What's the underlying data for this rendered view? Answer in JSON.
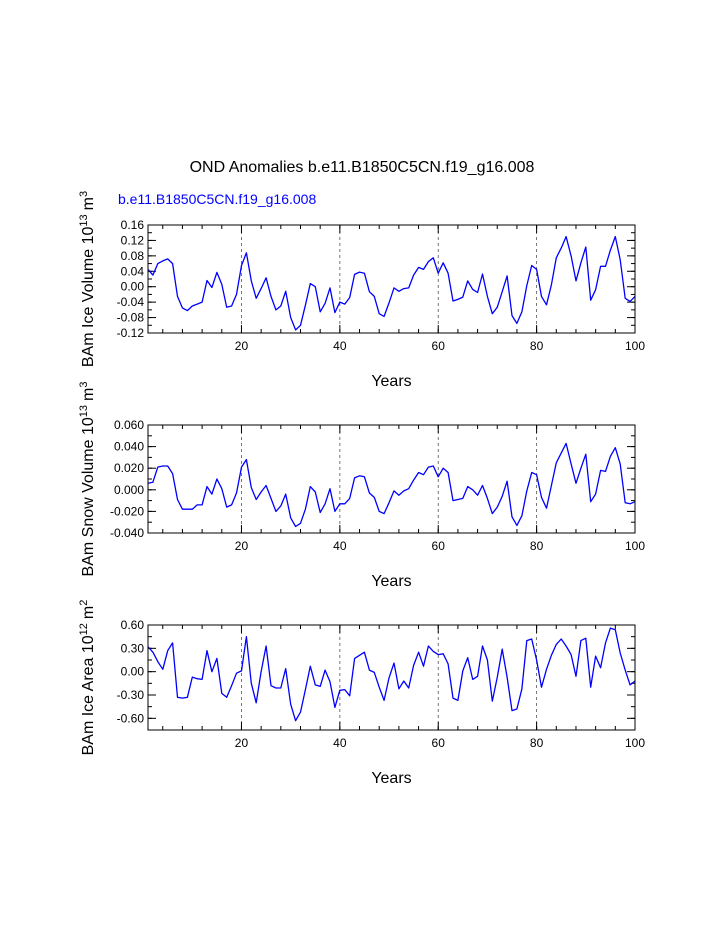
{
  "figure": {
    "title": "OND Anomalies b.e11.B1850C5CN.f19_g16.008",
    "subtitle": "b.e11.B1850C5CN.f19_g16.008",
    "subtitle_color": "#0000ff",
    "line_color": "#0000ff"
  },
  "chart_data": [
    {
      "type": "line",
      "title": "",
      "xlabel": "Years",
      "ylabel": "BAm Ice Volume 10",
      "ylabel_exp": "13",
      "ylabel_unit": "m",
      "ylabel_unit_exp": "3",
      "xlim": [
        1,
        100
      ],
      "ylim": [
        -0.12,
        0.16
      ],
      "yticks": [
        -0.12,
        -0.08,
        -0.04,
        0.0,
        0.04,
        0.08,
        0.12,
        0.16
      ],
      "ytick_labels": [
        "-0.12",
        "-0.08",
        "-0.04",
        "0.00",
        "0.04",
        "0.08",
        "0.12",
        "0.16"
      ],
      "yminor_step": 0.02,
      "xticks": [
        20,
        40,
        60,
        80,
        100
      ],
      "xtick_labels": [
        "20",
        "40",
        "60",
        "80",
        "100"
      ],
      "xminor_step": 4,
      "gridlines_x": [
        20,
        40,
        60,
        80
      ],
      "series": [
        {
          "name": "b.e11.B1850C5CN.f19_g16.008",
          "x": [
            1,
            2,
            3,
            4,
            5,
            6,
            7,
            8,
            9,
            10,
            11,
            12,
            13,
            14,
            15,
            16,
            17,
            18,
            19,
            20,
            21,
            22,
            23,
            24,
            25,
            26,
            27,
            28,
            29,
            30,
            31,
            32,
            33,
            34,
            35,
            36,
            37,
            38,
            39,
            40,
            41,
            42,
            43,
            44,
            45,
            46,
            47,
            48,
            49,
            50,
            51,
            52,
            53,
            54,
            55,
            56,
            57,
            58,
            59,
            60,
            61,
            62,
            63,
            64,
            65,
            66,
            67,
            68,
            69,
            70,
            71,
            72,
            73,
            74,
            75,
            76,
            77,
            78,
            79,
            80,
            81,
            82,
            83,
            84,
            85,
            86,
            87,
            88,
            89,
            90,
            91,
            92,
            93,
            94,
            95,
            96,
            97,
            98,
            99,
            100
          ],
          "values": [
            0.045,
            0.03,
            0.06,
            0.067,
            0.072,
            0.06,
            -0.025,
            -0.055,
            -0.062,
            -0.05,
            -0.045,
            -0.04,
            0.016,
            -0.002,
            0.037,
            0.006,
            -0.053,
            -0.05,
            -0.02,
            0.055,
            0.088,
            0.015,
            -0.03,
            -0.005,
            0.023,
            -0.025,
            -0.06,
            -0.05,
            -0.012,
            -0.08,
            -0.112,
            -0.1,
            -0.048,
            0.008,
            0.0,
            -0.065,
            -0.043,
            -0.003,
            -0.067,
            -0.04,
            -0.045,
            -0.028,
            0.032,
            0.038,
            0.035,
            -0.013,
            -0.025,
            -0.07,
            -0.077,
            -0.042,
            -0.003,
            -0.012,
            -0.005,
            -0.003,
            0.03,
            0.05,
            0.045,
            0.065,
            0.075,
            0.035,
            0.062,
            0.035,
            -0.037,
            -0.033,
            -0.027,
            0.015,
            -0.007,
            -0.015,
            0.033,
            -0.025,
            -0.07,
            -0.053,
            -0.013,
            0.028,
            -0.075,
            -0.095,
            -0.065,
            0.003,
            0.055,
            0.045,
            -0.025,
            -0.047,
            0.005,
            0.075,
            0.1,
            0.13,
            0.08,
            0.015,
            0.062,
            0.103,
            -0.035,
            -0.008,
            0.053,
            0.053,
            0.095,
            0.13,
            0.07,
            -0.03,
            -0.038,
            -0.025
          ]
        }
      ]
    },
    {
      "type": "line",
      "title": "",
      "xlabel": "Years",
      "ylabel": "BAm Snow Volume 10",
      "ylabel_exp": "13",
      "ylabel_unit": "m",
      "ylabel_unit_exp": "3",
      "xlim": [
        1,
        100
      ],
      "ylim": [
        -0.04,
        0.06
      ],
      "yticks": [
        -0.04,
        -0.02,
        0.0,
        0.02,
        0.04,
        0.06
      ],
      "ytick_labels": [
        "-0.040",
        "-0.020",
        "0.000",
        "0.020",
        "0.040",
        "0.060"
      ],
      "yminor_step": 0.01,
      "xticks": [
        20,
        40,
        60,
        80,
        100
      ],
      "xtick_labels": [
        "20",
        "40",
        "60",
        "80",
        "100"
      ],
      "xminor_step": 4,
      "gridlines_x": [
        20,
        40,
        60,
        80
      ],
      "series": [
        {
          "name": "b.e11.B1850C5CN.f19_g16.008",
          "x": [
            1,
            2,
            3,
            4,
            5,
            6,
            7,
            8,
            9,
            10,
            11,
            12,
            13,
            14,
            15,
            16,
            17,
            18,
            19,
            20,
            21,
            22,
            23,
            24,
            25,
            26,
            27,
            28,
            29,
            30,
            31,
            32,
            33,
            34,
            35,
            36,
            37,
            38,
            39,
            40,
            41,
            42,
            43,
            44,
            45,
            46,
            47,
            48,
            49,
            50,
            51,
            52,
            53,
            54,
            55,
            56,
            57,
            58,
            59,
            60,
            61,
            62,
            63,
            64,
            65,
            66,
            67,
            68,
            69,
            70,
            71,
            72,
            73,
            74,
            75,
            76,
            77,
            78,
            79,
            80,
            81,
            82,
            83,
            84,
            85,
            86,
            87,
            88,
            89,
            90,
            91,
            92,
            93,
            94,
            95,
            96,
            97,
            98,
            99,
            100
          ],
          "values": [
            0.006,
            0.007,
            0.021,
            0.022,
            0.022,
            0.015,
            -0.009,
            -0.018,
            -0.018,
            -0.018,
            -0.014,
            -0.014,
            0.003,
            -0.004,
            0.01,
            0.001,
            -0.016,
            -0.014,
            -0.003,
            0.021,
            0.028,
            0.002,
            -0.009,
            -0.002,
            0.004,
            -0.008,
            -0.02,
            -0.015,
            -0.004,
            -0.026,
            -0.034,
            -0.031,
            -0.018,
            0.003,
            -0.002,
            -0.021,
            -0.013,
            0.001,
            -0.02,
            -0.013,
            -0.013,
            -0.008,
            0.011,
            0.013,
            0.012,
            -0.003,
            -0.007,
            -0.02,
            -0.022,
            -0.012,
            -0.001,
            -0.005,
            -0.001,
            0.001,
            0.009,
            0.016,
            0.014,
            0.021,
            0.022,
            0.012,
            0.02,
            0.016,
            -0.01,
            -0.009,
            -0.008,
            0.003,
            0.0,
            -0.005,
            0.004,
            -0.008,
            -0.022,
            -0.016,
            -0.006,
            0.008,
            -0.025,
            -0.033,
            -0.024,
            -0.001,
            0.016,
            0.014,
            -0.007,
            -0.017,
            0.004,
            0.025,
            0.034,
            0.043,
            0.024,
            0.006,
            0.02,
            0.033,
            -0.011,
            -0.004,
            0.018,
            0.017,
            0.031,
            0.039,
            0.024,
            -0.012,
            -0.013,
            -0.011
          ]
        }
      ]
    },
    {
      "type": "line",
      "title": "",
      "xlabel": "Years",
      "ylabel": "BAm Ice Area 10",
      "ylabel_exp": "12",
      "ylabel_unit": "m",
      "ylabel_unit_exp": "2",
      "xlim": [
        1,
        100
      ],
      "ylim": [
        -0.75,
        0.6
      ],
      "yticks": [
        -0.6,
        -0.3,
        0.0,
        0.3,
        0.6
      ],
      "ytick_labels": [
        "-0.60",
        "-0.30",
        "0.00",
        "0.30",
        "0.60"
      ],
      "yminor_step": 0.15,
      "xticks": [
        20,
        40,
        60,
        80,
        100
      ],
      "xtick_labels": [
        "20",
        "40",
        "60",
        "80",
        "100"
      ],
      "xminor_step": 4,
      "gridlines_x": [
        20,
        40,
        60,
        80
      ],
      "series": [
        {
          "name": "b.e11.B1850C5CN.f19_g16.008",
          "x": [
            1,
            2,
            3,
            4,
            5,
            6,
            7,
            8,
            9,
            10,
            11,
            12,
            13,
            14,
            15,
            16,
            17,
            18,
            19,
            20,
            21,
            22,
            23,
            24,
            25,
            26,
            27,
            28,
            29,
            30,
            31,
            32,
            33,
            34,
            35,
            36,
            37,
            38,
            39,
            40,
            41,
            42,
            43,
            44,
            45,
            46,
            47,
            48,
            49,
            50,
            51,
            52,
            53,
            54,
            55,
            56,
            57,
            58,
            59,
            60,
            61,
            62,
            63,
            64,
            65,
            66,
            67,
            68,
            69,
            70,
            71,
            72,
            73,
            74,
            75,
            76,
            77,
            78,
            79,
            80,
            81,
            82,
            83,
            84,
            85,
            86,
            87,
            88,
            89,
            90,
            91,
            92,
            93,
            94,
            95,
            96,
            97,
            98,
            99,
            100
          ],
          "values": [
            0.32,
            0.25,
            0.13,
            0.03,
            0.27,
            0.37,
            -0.33,
            -0.34,
            -0.33,
            -0.07,
            -0.09,
            -0.1,
            0.27,
            0.0,
            0.17,
            -0.28,
            -0.33,
            -0.18,
            -0.02,
            0.01,
            0.45,
            -0.15,
            -0.4,
            0.0,
            0.33,
            -0.18,
            -0.21,
            -0.21,
            0.04,
            -0.42,
            -0.63,
            -0.52,
            -0.23,
            0.07,
            -0.17,
            -0.19,
            0.02,
            -0.13,
            -0.46,
            -0.24,
            -0.23,
            -0.31,
            0.17,
            0.21,
            0.25,
            0.02,
            -0.01,
            -0.2,
            -0.37,
            -0.08,
            0.11,
            -0.22,
            -0.12,
            -0.21,
            0.08,
            0.25,
            0.07,
            0.33,
            0.26,
            0.22,
            0.23,
            0.1,
            -0.34,
            -0.37,
            0.01,
            0.18,
            -0.1,
            -0.06,
            0.33,
            0.15,
            -0.38,
            -0.07,
            0.29,
            -0.07,
            -0.5,
            -0.48,
            -0.22,
            0.4,
            0.42,
            0.15,
            -0.2,
            0.03,
            0.21,
            0.35,
            0.42,
            0.33,
            0.22,
            -0.06,
            0.4,
            0.43,
            -0.2,
            0.2,
            0.05,
            0.37,
            0.56,
            0.54,
            0.24,
            0.02,
            -0.17,
            -0.12
          ]
        }
      ]
    }
  ]
}
